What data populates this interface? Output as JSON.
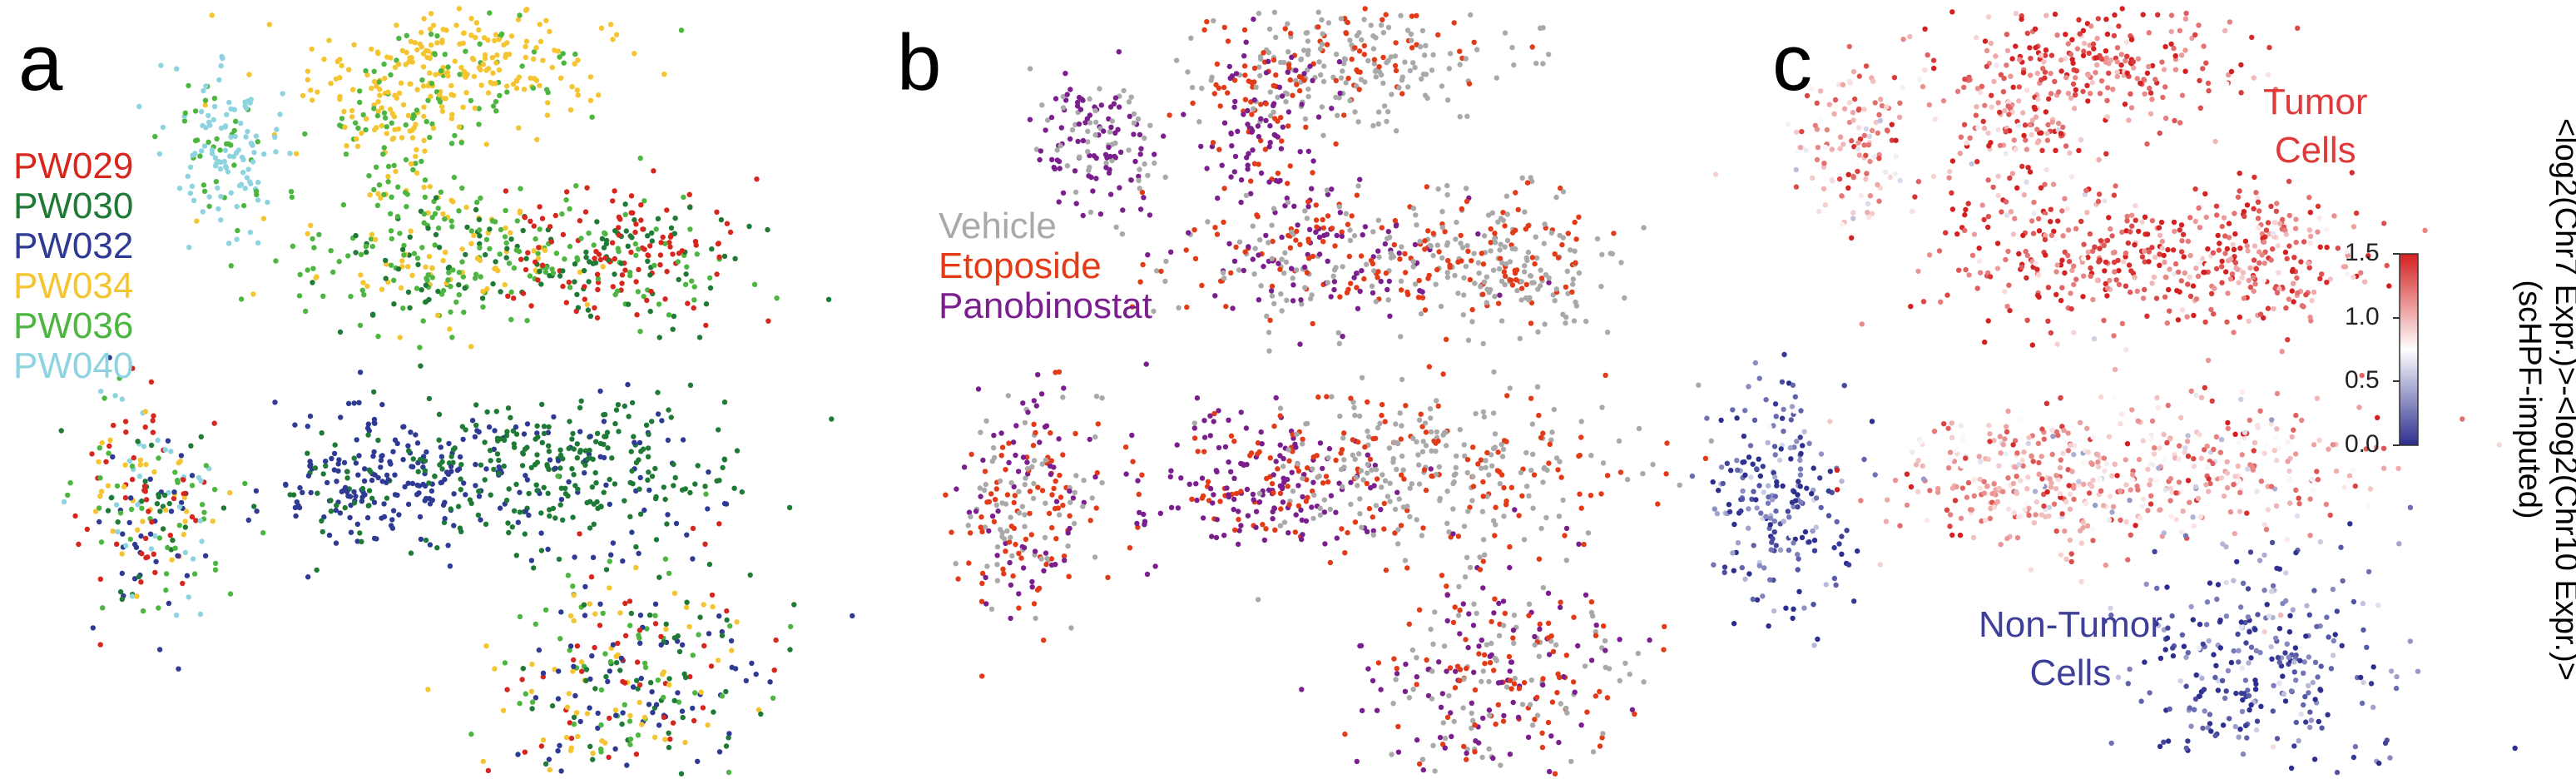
{
  "panels": [
    {
      "letter": "a"
    },
    {
      "letter": "b"
    },
    {
      "letter": "c"
    }
  ],
  "legend_a": [
    {
      "label": "PW029",
      "color": "#d7261e"
    },
    {
      "label": "PW030",
      "color": "#1f7a36"
    },
    {
      "label": "PW032",
      "color": "#2e3a94"
    },
    {
      "label": "PW034",
      "color": "#f4c531"
    },
    {
      "label": "PW036",
      "color": "#4cb640"
    },
    {
      "label": "PW040",
      "color": "#8dd3e0"
    }
  ],
  "legend_b": [
    {
      "label": "Vehicle",
      "color": "#a9a9a9"
    },
    {
      "label": "Etoposide",
      "color": "#e33b17"
    },
    {
      "label": "Panobinostat",
      "color": "#7b1f8f"
    }
  ],
  "panel_c": {
    "tumor_label_line1": "Tumor",
    "tumor_label_line2": "Cells",
    "tumor_color": "#e0393a",
    "nontumor_label_line1": "Non-Tumor",
    "nontumor_label_line2": "Cells",
    "nontumor_color": "#3d3f99",
    "colorbar_label_line1": "<log2(Chr7 Expr.)>-<log2(Chr10 Expr.)>",
    "colorbar_label_line2": "(scHPF-imputed)",
    "colorbar_ticks": [
      "0.0",
      "0.5",
      "1.0",
      "1.5"
    ],
    "colorbar_range": [
      0.0,
      1.5
    ],
    "colormap": [
      "#2c2f8f",
      "#ffffff",
      "#d42020"
    ]
  },
  "chart_data": [
    {
      "type": "scatter",
      "panel": "a",
      "title": "",
      "xlabel": "",
      "ylabel": "",
      "grid": false,
      "legend_placement": "left",
      "series": [
        {
          "name": "PW029",
          "color": "#d7261e"
        },
        {
          "name": "PW030",
          "color": "#1f7a36"
        },
        {
          "name": "PW032",
          "color": "#2e3a94"
        },
        {
          "name": "PW034",
          "color": "#f4c531"
        },
        {
          "name": "PW036",
          "color": "#4cb640"
        },
        {
          "name": "PW040",
          "color": "#8dd3e0"
        }
      ]
    },
    {
      "type": "scatter",
      "panel": "b",
      "title": "",
      "xlabel": "",
      "ylabel": "",
      "grid": false,
      "legend_placement": "left",
      "series": [
        {
          "name": "Vehicle",
          "color": "#a9a9a9"
        },
        {
          "name": "Etoposide",
          "color": "#e33b17"
        },
        {
          "name": "Panobinostat",
          "color": "#7b1f8f"
        }
      ]
    },
    {
      "type": "scatter",
      "panel": "c",
      "title": "",
      "xlabel": "",
      "ylabel": "",
      "grid": false,
      "colorbar": {
        "range": [
          0.0,
          1.5
        ],
        "ticks": [
          0.0,
          0.5,
          1.0,
          1.5
        ]
      }
    }
  ]
}
